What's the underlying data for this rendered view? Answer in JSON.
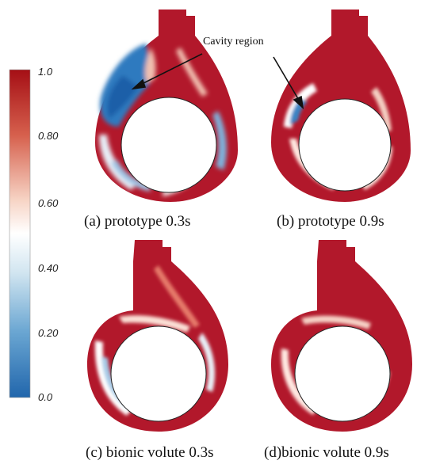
{
  "colorbar": {
    "ticks": [
      "1.0",
      "0.80",
      "0.60",
      "0.40",
      "0.20",
      "0.0"
    ],
    "colors": {
      "high": "#b2182b",
      "mid": "#ffffff",
      "low": "#2166ac"
    }
  },
  "annotation": {
    "label": "Cavity region"
  },
  "panels": [
    {
      "caption": "(a)  prototype 0.3s"
    },
    {
      "caption": "(b) prototype 0.9s"
    },
    {
      "caption": "(c) bionic volute 0.3s"
    },
    {
      "caption": "(d)bionic volute 0.9s"
    }
  ]
}
